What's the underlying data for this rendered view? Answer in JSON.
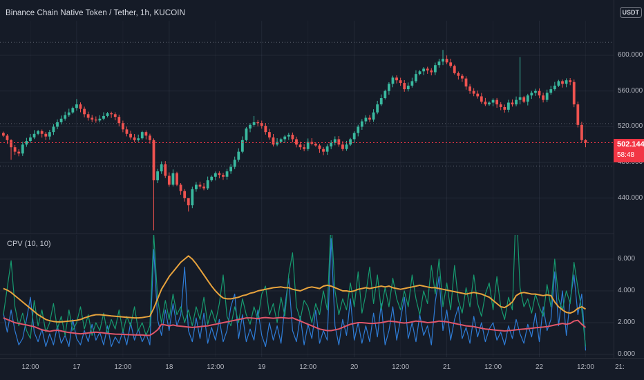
{
  "header": {
    "symbol_title": "Binance Chain Native Token / Tether, 1h, KUCOIN"
  },
  "price_axis": {
    "unit_label": "USDT",
    "last_price_label": "502.144",
    "countdown": "58:48"
  },
  "time_axis": {
    "clock_partial": "21:"
  },
  "indicator_header": {
    "label": "CPV (10, 10)"
  },
  "chart_data": {
    "type": "candlestick",
    "symbol": "Binance Chain Native Token / Tether",
    "interval": "1h",
    "exchange": "KUCOIN",
    "price_ticks": [
      600,
      560,
      520,
      480,
      440
    ],
    "price_range_visible": [
      404,
      618
    ],
    "reference_levels": [
      614.5,
      523.5,
      476
    ],
    "last_price": 502.144,
    "x_ticks": [
      {
        "label": "12:00",
        "index": 7,
        "major": false
      },
      {
        "label": "17",
        "index": 19,
        "major": true
      },
      {
        "label": "12:00",
        "index": 31,
        "major": false
      },
      {
        "label": "18",
        "index": 43,
        "major": true
      },
      {
        "label": "12:00",
        "index": 55,
        "major": false
      },
      {
        "label": "19",
        "index": 67,
        "major": true
      },
      {
        "label": "12:00",
        "index": 79,
        "major": false
      },
      {
        "label": "20",
        "index": 91,
        "major": true
      },
      {
        "label": "12:00",
        "index": 103,
        "major": false
      },
      {
        "label": "21",
        "index": 115,
        "major": true
      },
      {
        "label": "12:00",
        "index": 127,
        "major": false
      },
      {
        "label": "22",
        "index": 139,
        "major": true
      },
      {
        "label": "12:00",
        "index": 151,
        "major": false
      }
    ],
    "first_open": 513,
    "closes": [
      510,
      505,
      497,
      492,
      490,
      500,
      504,
      508,
      512,
      515,
      512,
      509,
      514,
      520,
      525,
      529,
      533,
      536,
      541,
      545,
      540,
      534,
      530,
      528,
      527,
      529,
      532,
      535,
      534,
      531,
      524,
      517,
      512,
      508,
      505,
      507,
      514,
      510,
      505,
      460,
      470,
      478,
      465,
      455,
      468,
      455,
      448,
      440,
      432,
      450,
      455,
      453,
      451,
      460,
      464,
      468,
      466,
      464,
      470,
      475,
      483,
      492,
      505,
      518,
      522,
      525,
      524,
      521,
      514,
      508,
      500,
      503,
      506,
      509,
      511,
      506,
      500,
      497,
      495,
      503,
      501,
      499,
      495,
      492,
      498,
      502,
      506,
      500,
      495,
      500,
      506,
      513,
      520,
      526,
      530,
      528,
      536,
      545,
      552,
      560,
      568,
      575,
      572,
      569,
      562,
      566,
      571,
      579,
      582,
      585,
      583,
      581,
      589,
      593,
      596,
      592,
      588,
      580,
      577,
      574,
      565,
      560,
      557,
      554,
      548,
      545,
      547,
      550,
      545,
      542,
      539,
      547,
      545,
      550,
      553,
      548,
      555,
      558,
      560,
      555,
      550,
      558,
      562,
      566,
      571,
      568,
      572,
      570,
      545,
      522,
      505,
      502.144
    ],
    "wick_overrides": {
      "2": [
        506,
        483
      ],
      "19": [
        551,
        538
      ],
      "39": [
        507,
        404
      ],
      "48": [
        436,
        425
      ],
      "65": [
        532,
        520
      ],
      "97": [
        549,
        534
      ],
      "114": [
        606,
        589
      ],
      "134": [
        598,
        545
      ],
      "151": [
        506,
        497
      ]
    },
    "colors": {
      "up": "#3ab99f",
      "down": "#ef5350",
      "last_price": "#f23645",
      "grid": "rgba(160,168,188,0.10)",
      "grid_minor": "rgba(160,168,188,0.055)",
      "reference": "rgba(220,224,235,0.35)"
    },
    "indicator": {
      "name": "CPV",
      "params": "10, 10",
      "y_ticks": [
        6,
        4,
        2,
        0
      ],
      "series": [
        {
          "name": "cpv-blue",
          "color": "#2e7cd6",
          "width": 1.2,
          "values": [
            2.6,
            1.4,
            2.8,
            1.5,
            0.6,
            1.0,
            2.2,
            3.6,
            1.4,
            0.8,
            1.6,
            0.5,
            1.3,
            0.6,
            1.8,
            0.7,
            1.2,
            0.5,
            2.2,
            1.0,
            0.6,
            1.5,
            0.8,
            1.9,
            0.9,
            1.4,
            0.6,
            1.8,
            0.5,
            1.1,
            0.7,
            1.5,
            0.6,
            2.0,
            0.9,
            1.6,
            0.8,
            1.3,
            0.6,
            6.6,
            2.2,
            1.2,
            2.8,
            1.5,
            3.2,
            1.8,
            2.5,
            5.5,
            1.5,
            0.8,
            2.3,
            1.0,
            2.6,
            0.7,
            1.7,
            0.9,
            2.2,
            0.8,
            1.5,
            3.0,
            3.8,
            1.0,
            2.5,
            0.8,
            1.6,
            0.9,
            2.8,
            1.2,
            0.5,
            2.0,
            0.9,
            1.8,
            0.7,
            3.0,
            4.8,
            1.5,
            0.8,
            2.4,
            0.6,
            1.9,
            1.0,
            2.8,
            0.7,
            1.5,
            0.9,
            7.3,
            1.8,
            0.6,
            2.2,
            1.2,
            3.5,
            0.9,
            2.0,
            0.7,
            1.8,
            0.8,
            2.6,
            1.1,
            3.2,
            0.6,
            1.5,
            3.0,
            0.9,
            2.2,
            3.6,
            1.0,
            2.0,
            0.8,
            2.5,
            1.2,
            1.8,
            0.6,
            3.3,
            4.9,
            1.5,
            2.8,
            0.9,
            2.2,
            3.0,
            1.0,
            1.7,
            0.7,
            2.4,
            1.1,
            2.0,
            0.8,
            1.6,
            2.0,
            0.9,
            1.4,
            0.6,
            1.8,
            1.0,
            2.2,
            1.3,
            0.7,
            1.9,
            1.1,
            2.6,
            0.8,
            3.0,
            1.5,
            2.2,
            5.2,
            1.8,
            4.0,
            1.2,
            3.4,
            5.0,
            2.5,
            3.8,
            0.25
          ]
        },
        {
          "name": "cpv-green",
          "color": "#169a6f",
          "width": 1.2,
          "values": [
            2.5,
            4.2,
            5.9,
            3.0,
            1.8,
            2.6,
            1.5,
            1.0,
            3.4,
            1.8,
            2.8,
            1.4,
            2.0,
            3.2,
            1.6,
            2.4,
            1.2,
            2.8,
            1.5,
            2.0,
            3.0,
            1.6,
            2.5,
            1.2,
            2.0,
            1.5,
            2.6,
            1.3,
            2.2,
            1.6,
            2.8,
            1.4,
            2.4,
            1.8,
            3.0,
            1.5,
            2.0,
            1.2,
            1.8,
            7.6,
            3.5,
            2.0,
            3.4,
            2.2,
            3.8,
            2.5,
            3.0,
            2.0,
            2.8,
            1.8,
            3.0,
            2.2,
            3.6,
            1.9,
            2.8,
            2.0,
            3.2,
            5.0,
            2.4,
            1.8,
            3.0,
            2.0,
            3.5,
            2.5,
            1.9,
            3.0,
            2.2,
            3.8,
            4.3,
            2.5,
            3.2,
            2.0,
            3.6,
            2.4,
            5.0,
            6.4,
            3.0,
            2.2,
            3.4,
            3.0,
            2.0,
            3.2,
            2.5,
            4.0,
            2.8,
            8.5,
            4.0,
            2.5,
            3.5,
            2.8,
            4.5,
            3.0,
            5.2,
            2.6,
            3.8,
            5.5,
            3.2,
            5.0,
            2.8,
            4.2,
            3.0,
            4.8,
            3.5,
            2.8,
            4.0,
            3.0,
            5.0,
            3.5,
            2.5,
            4.0,
            3.2,
            5.6,
            3.8,
            6.0,
            3.0,
            4.5,
            2.8,
            5.6,
            3.4,
            2.6,
            4.2,
            3.0,
            5.0,
            3.2,
            2.4,
            3.8,
            4.5,
            2.8,
            4.9,
            3.0,
            2.2,
            3.6,
            2.8,
            9.5,
            4.2,
            3.0,
            3.5,
            2.6,
            3.8,
            3.0,
            2.4,
            4.4,
            3.0,
            6.0,
            3.5,
            2.8,
            4.0,
            3.2,
            5.8,
            4.2,
            2.8,
            0.5
          ]
        },
        {
          "name": "cpv-orange",
          "color": "#e8a33d",
          "width": 2,
          "values": [
            4.15,
            4.05,
            3.9,
            3.7,
            3.5,
            3.3,
            3.1,
            2.9,
            2.7,
            2.5,
            2.35,
            2.2,
            2.12,
            2.08,
            2.05,
            2.05,
            2.08,
            2.1,
            2.12,
            2.15,
            2.2,
            2.3,
            2.38,
            2.45,
            2.5,
            2.5,
            2.48,
            2.45,
            2.42,
            2.4,
            2.38,
            2.36,
            2.34,
            2.32,
            2.3,
            2.3,
            2.32,
            2.36,
            2.4,
            2.9,
            3.5,
            4.1,
            4.5,
            4.9,
            5.2,
            5.5,
            5.8,
            6.0,
            6.2,
            6.0,
            5.7,
            5.35,
            5.0,
            4.65,
            4.3,
            4.0,
            3.75,
            3.55,
            3.5,
            3.5,
            3.55,
            3.6,
            3.7,
            3.75,
            3.85,
            3.9,
            4.0,
            4.05,
            4.1,
            4.15,
            4.2,
            4.22,
            4.25,
            4.2,
            4.2,
            4.1,
            4.05,
            4.0,
            4.1,
            4.2,
            4.25,
            4.2,
            4.15,
            4.3,
            4.35,
            4.3,
            4.2,
            4.1,
            4.0,
            4.0,
            3.95,
            4.0,
            4.1,
            4.15,
            4.2,
            4.15,
            4.2,
            4.25,
            4.3,
            4.25,
            4.3,
            4.2,
            4.15,
            4.1,
            4.15,
            4.2,
            4.25,
            4.3,
            4.35,
            4.3,
            4.25,
            4.2,
            4.2,
            4.15,
            4.1,
            4.05,
            4.0,
            3.95,
            3.9,
            3.85,
            3.8,
            3.85,
            3.9,
            3.85,
            3.8,
            3.7,
            3.6,
            3.4,
            3.2,
            3.0,
            2.95,
            3.1,
            3.3,
            3.7,
            3.85,
            3.9,
            3.85,
            3.8,
            3.8,
            3.75,
            3.7,
            3.75,
            3.7,
            3.3,
            3.0,
            2.8,
            2.65,
            2.6,
            2.7,
            2.9,
            3.0,
            2.85
          ]
        },
        {
          "name": "cpv-pink",
          "color": "#e0566a",
          "width": 2,
          "values": [
            2.3,
            2.2,
            2.1,
            2.0,
            1.95,
            1.9,
            1.85,
            1.8,
            1.75,
            1.65,
            1.55,
            1.5,
            1.45,
            1.5,
            1.52,
            1.48,
            1.42,
            1.38,
            1.35,
            1.32,
            1.3,
            1.32,
            1.35,
            1.38,
            1.4,
            1.38,
            1.35,
            1.32,
            1.3,
            1.28,
            1.27,
            1.26,
            1.25,
            1.24,
            1.23,
            1.22,
            1.22,
            1.2,
            1.2,
            1.35,
            1.55,
            1.9,
            1.85,
            1.8,
            1.85,
            1.8,
            1.78,
            1.75,
            1.72,
            1.7,
            1.72,
            1.75,
            1.78,
            1.8,
            1.85,
            1.9,
            1.95,
            2.0,
            2.05,
            2.1,
            2.15,
            2.2,
            2.25,
            2.3,
            2.3,
            2.28,
            2.25,
            2.3,
            2.32,
            2.3,
            2.28,
            2.3,
            2.32,
            2.3,
            2.28,
            2.3,
            2.2,
            2.1,
            2.0,
            1.9,
            1.8,
            1.7,
            1.6,
            1.55,
            1.5,
            1.5,
            1.55,
            1.6,
            1.7,
            1.8,
            1.9,
            1.95,
            2.0,
            2.0,
            1.98,
            1.95,
            1.95,
            1.98,
            2.0,
            2.05,
            2.1,
            2.08,
            2.05,
            2.0,
            1.98,
            2.0,
            2.05,
            2.1,
            2.08,
            2.05,
            2.0,
            2.02,
            2.05,
            2.1,
            2.08,
            2.05,
            2.0,
            1.95,
            1.9,
            1.85,
            1.8,
            1.78,
            1.75,
            1.7,
            1.65,
            1.6,
            1.58,
            1.55,
            1.52,
            1.5,
            1.48,
            1.5,
            1.52,
            1.55,
            1.58,
            1.6,
            1.62,
            1.65,
            1.68,
            1.7,
            1.72,
            1.75,
            1.8,
            1.85,
            1.9,
            1.95,
            1.9,
            1.95,
            2.1,
            2.15,
            1.9,
            1.7
          ]
        }
      ]
    }
  }
}
